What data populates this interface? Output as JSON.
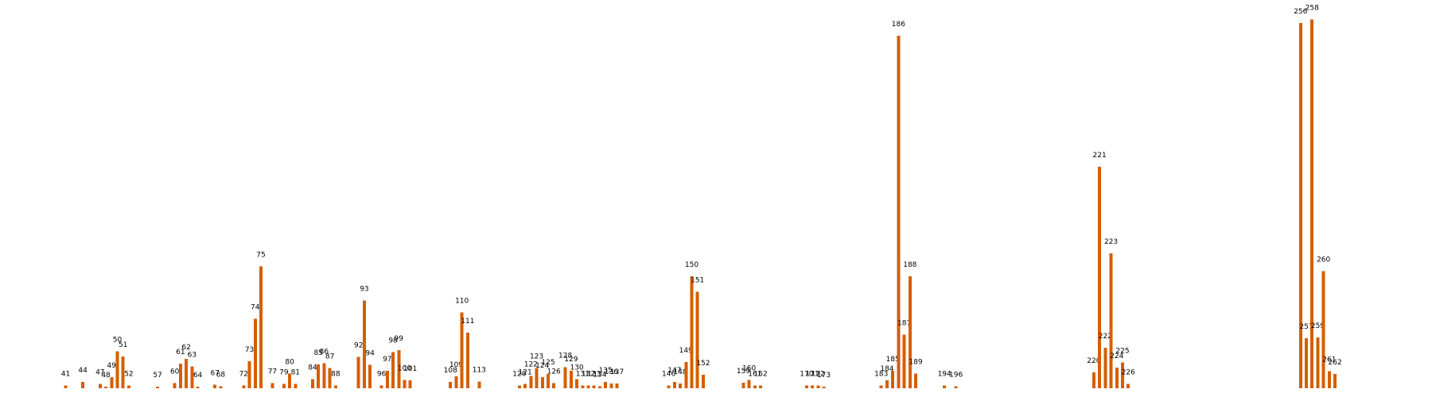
{
  "chart_data": {
    "type": "bar",
    "title": "",
    "xlabel": "",
    "ylabel": "",
    "color": "#d55e00",
    "axes_visible": false,
    "grid": false,
    "legend": "none",
    "ylim": [
      0,
      100
    ],
    "x_range": [
      30,
      273
    ],
    "points": [
      {
        "x": 41,
        "v": 0.8
      },
      {
        "x": 44,
        "v": 1.8
      },
      {
        "x": 47,
        "v": 1.2
      },
      {
        "x": 48,
        "v": 0.5
      },
      {
        "x": 49,
        "v": 3.2
      },
      {
        "x": 50,
        "v": 10.5
      },
      {
        "x": 51,
        "v": 9.0
      },
      {
        "x": 52,
        "v": 0.8
      },
      {
        "x": 57,
        "v": 0.5
      },
      {
        "x": 60,
        "v": 1.5
      },
      {
        "x": 61,
        "v": 7.0
      },
      {
        "x": 62,
        "v": 8.3
      },
      {
        "x": 63,
        "v": 6.2
      },
      {
        "x": 64,
        "v": 0.5
      },
      {
        "x": 67,
        "v": 1.0
      },
      {
        "x": 68,
        "v": 0.6
      },
      {
        "x": 72,
        "v": 0.8
      },
      {
        "x": 73,
        "v": 7.7
      },
      {
        "x": 74,
        "v": 19.7
      },
      {
        "x": 75,
        "v": 34.6
      },
      {
        "x": 77,
        "v": 1.5
      },
      {
        "x": 79,
        "v": 1.2
      },
      {
        "x": 80,
        "v": 4.2
      },
      {
        "x": 81,
        "v": 1.2
      },
      {
        "x": 84,
        "v": 2.6
      },
      {
        "x": 85,
        "v": 6.8
      },
      {
        "x": 86,
        "v": 7.1
      },
      {
        "x": 87,
        "v": 5.7
      },
      {
        "x": 88,
        "v": 0.8
      },
      {
        "x": 92,
        "v": 8.9
      },
      {
        "x": 93,
        "v": 24.9
      },
      {
        "x": 94,
        "v": 6.6
      },
      {
        "x": 96,
        "v": 0.8
      },
      {
        "x": 97,
        "v": 5.0
      },
      {
        "x": 98,
        "v": 10.3
      },
      {
        "x": 99,
        "v": 10.8
      },
      {
        "x": 100,
        "v": 2.4
      },
      {
        "x": 101,
        "v": 2.2
      },
      {
        "x": 108,
        "v": 1.8
      },
      {
        "x": 109,
        "v": 3.4
      },
      {
        "x": 110,
        "v": 21.5
      },
      {
        "x": 111,
        "v": 15.8
      },
      {
        "x": 113,
        "v": 1.9
      },
      {
        "x": 120,
        "v": 0.8
      },
      {
        "x": 121,
        "v": 1.2
      },
      {
        "x": 122,
        "v": 3.5
      },
      {
        "x": 123,
        "v": 5.8
      },
      {
        "x": 124,
        "v": 3.1
      },
      {
        "x": 125,
        "v": 4.1
      },
      {
        "x": 126,
        "v": 1.5
      },
      {
        "x": 128,
        "v": 6.0
      },
      {
        "x": 129,
        "v": 4.9
      },
      {
        "x": 130,
        "v": 2.6
      },
      {
        "x": 131,
        "v": 0.8
      },
      {
        "x": 132,
        "v": 0.8
      },
      {
        "x": 133,
        "v": 0.8
      },
      {
        "x": 134,
        "v": 0.6
      },
      {
        "x": 135,
        "v": 1.8
      },
      {
        "x": 136,
        "v": 1.3
      },
      {
        "x": 137,
        "v": 1.4
      },
      {
        "x": 146,
        "v": 0.8
      },
      {
        "x": 147,
        "v": 1.8
      },
      {
        "x": 148,
        "v": 1.3
      },
      {
        "x": 149,
        "v": 7.4
      },
      {
        "x": 150,
        "v": 31.8
      },
      {
        "x": 151,
        "v": 27.4
      },
      {
        "x": 152,
        "v": 3.8
      },
      {
        "x": 159,
        "v": 1.6
      },
      {
        "x": 160,
        "v": 2.4
      },
      {
        "x": 161,
        "v": 0.8
      },
      {
        "x": 162,
        "v": 0.8
      },
      {
        "x": 170,
        "v": 0.8
      },
      {
        "x": 171,
        "v": 0.8
      },
      {
        "x": 172,
        "v": 0.8
      },
      {
        "x": 173,
        "v": 0.5
      },
      {
        "x": 183,
        "v": 0.8
      },
      {
        "x": 184,
        "v": 2.2
      },
      {
        "x": 185,
        "v": 5.0
      },
      {
        "x": 186,
        "v": 100
      },
      {
        "x": 187,
        "v": 15.2
      },
      {
        "x": 188,
        "v": 31.8
      },
      {
        "x": 189,
        "v": 4.2
      },
      {
        "x": 194,
        "v": 0.8
      },
      {
        "x": 196,
        "v": 0.6
      },
      {
        "x": 220,
        "v": 4.5
      },
      {
        "x": 221,
        "v": 62.8
      },
      {
        "x": 222,
        "v": 11.5
      },
      {
        "x": 223,
        "v": 38.3
      },
      {
        "x": 224,
        "v": 5.9
      },
      {
        "x": 225,
        "v": 7.3
      },
      {
        "x": 226,
        "v": 1.2
      },
      {
        "x": 256,
        "v": 103.6
      },
      {
        "x": 257,
        "v": 14.2
      },
      {
        "x": 258,
        "v": 104.6
      },
      {
        "x": 259,
        "v": 14.4
      },
      {
        "x": 260,
        "v": 33.2
      },
      {
        "x": 261,
        "v": 4.8
      },
      {
        "x": 262,
        "v": 4.0
      }
    ]
  }
}
